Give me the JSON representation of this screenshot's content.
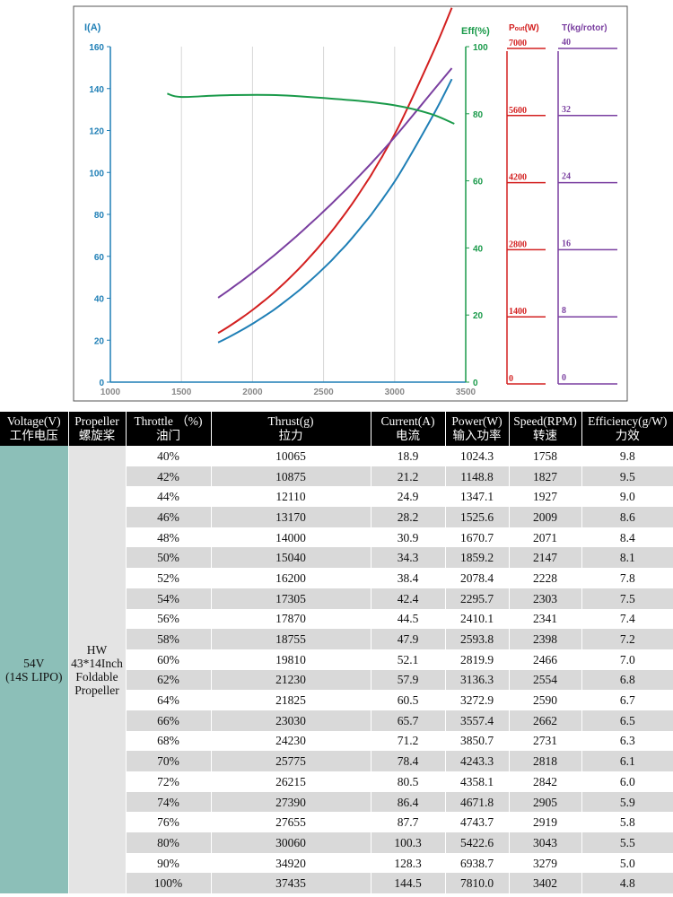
{
  "chart_data": {
    "type": "line",
    "x_ticks": [
      "1000",
      "1500",
      "2000",
      "2500",
      "3000",
      "3500"
    ],
    "xlim": [
      1000,
      3500
    ],
    "axes": {
      "current": {
        "label": "I(A)",
        "ticks": [
          "0",
          "20",
          "40",
          "60",
          "80",
          "100",
          "120",
          "140",
          "160"
        ],
        "range": [
          0,
          160
        ],
        "color": "#1f7fb6"
      },
      "efficiency": {
        "label": "Eff(%)",
        "ticks": [
          "0",
          "20",
          "40",
          "60",
          "80",
          "100"
        ],
        "range": [
          0,
          100
        ],
        "color": "#1a9a4a"
      },
      "power": {
        "label_main": "P",
        "label_sub": "out",
        "label_unit": "(W)",
        "ticks": [
          "0",
          "1400",
          "2800",
          "4200",
          "5600",
          "7000"
        ],
        "range": [
          0,
          7000
        ],
        "color": "#d32020"
      },
      "thrust": {
        "label": "T(kg/rotor)",
        "ticks": [
          "0",
          "8",
          "16",
          "24",
          "32",
          "40"
        ],
        "range": [
          0,
          40
        ],
        "color": "#7a3fa0"
      }
    },
    "series": [
      {
        "axis": "current",
        "color": "#1f7fb6",
        "points": [
          [
            1758,
            18.9
          ],
          [
            1827,
            21.2
          ],
          [
            1927,
            24.9
          ],
          [
            2009,
            28.2
          ],
          [
            2071,
            30.9
          ],
          [
            2147,
            34.3
          ],
          [
            2228,
            38.4
          ],
          [
            2303,
            42.4
          ],
          [
            2341,
            44.5
          ],
          [
            2398,
            47.9
          ],
          [
            2466,
            52.1
          ],
          [
            2554,
            57.9
          ],
          [
            2590,
            60.5
          ],
          [
            2662,
            65.7
          ],
          [
            2731,
            71.2
          ],
          [
            2818,
            78.4
          ],
          [
            2842,
            80.5
          ],
          [
            2905,
            86.4
          ],
          [
            2919,
            87.7
          ],
          [
            3043,
            100.3
          ],
          [
            3279,
            128.3
          ],
          [
            3402,
            144.5
          ]
        ]
      },
      {
        "axis": "power",
        "color": "#d32020",
        "points": [
          [
            1758,
            1024.3
          ],
          [
            1827,
            1148.8
          ],
          [
            1927,
            1347.1
          ],
          [
            2009,
            1525.6
          ],
          [
            2071,
            1670.7
          ],
          [
            2147,
            1859.2
          ],
          [
            2228,
            2078.4
          ],
          [
            2303,
            2295.7
          ],
          [
            2341,
            2410.1
          ],
          [
            2398,
            2593.8
          ],
          [
            2466,
            2819.9
          ],
          [
            2554,
            3136.3
          ],
          [
            2590,
            3272.9
          ],
          [
            2662,
            3557.4
          ],
          [
            2731,
            3850.7
          ],
          [
            2818,
            4243.3
          ],
          [
            2842,
            4358.1
          ],
          [
            2905,
            4671.8
          ],
          [
            2919,
            4743.7
          ],
          [
            3043,
            5422.6
          ],
          [
            3279,
            6938.7
          ],
          [
            3402,
            7810.0
          ]
        ]
      },
      {
        "axis": "thrust",
        "color": "#7a3fa0",
        "points": [
          [
            1758,
            10.065
          ],
          [
            1827,
            10.875
          ],
          [
            1927,
            12.11
          ],
          [
            2009,
            13.17
          ],
          [
            2071,
            14.0
          ],
          [
            2147,
            15.04
          ],
          [
            2228,
            16.2
          ],
          [
            2303,
            17.305
          ],
          [
            2341,
            17.87
          ],
          [
            2398,
            18.755
          ],
          [
            2466,
            19.81
          ],
          [
            2554,
            21.23
          ],
          [
            2590,
            21.825
          ],
          [
            2662,
            23.03
          ],
          [
            2731,
            24.23
          ],
          [
            2818,
            25.775
          ],
          [
            2842,
            26.215
          ],
          [
            2905,
            27.39
          ],
          [
            2919,
            27.655
          ],
          [
            3043,
            30.06
          ],
          [
            3279,
            34.92
          ],
          [
            3402,
            37.435
          ]
        ]
      },
      {
        "axis": "efficiency",
        "color": "#1a9a4a",
        "points": [
          [
            1400,
            86
          ],
          [
            1500,
            85
          ],
          [
            1800,
            85.5
          ],
          [
            2200,
            85.5
          ],
          [
            2700,
            84
          ],
          [
            3000,
            82.5
          ],
          [
            3250,
            80
          ],
          [
            3420,
            77
          ]
        ]
      }
    ]
  },
  "table": {
    "headers": [
      [
        "Voltage(V)",
        "工作电压"
      ],
      [
        "Propeller",
        "螺旋桨"
      ],
      [
        "Throttle （%)",
        "油门"
      ],
      [
        "Thrust(g)",
        "拉力"
      ],
      [
        "Current(A)",
        "电流"
      ],
      [
        "Power(W)",
        "输入功率"
      ],
      [
        "Speed(RPM)",
        "转速"
      ],
      [
        "Efficiency(g/W)",
        "力效"
      ]
    ],
    "voltage": [
      "54V",
      "(14S LIPO)"
    ],
    "propeller": [
      "HW",
      "43*14Inch",
      "Foldable",
      "Propeller"
    ],
    "rows": [
      [
        "40%",
        "10065",
        "18.9",
        "1024.3",
        "1758",
        "9.8"
      ],
      [
        "42%",
        "10875",
        "21.2",
        "1148.8",
        "1827",
        "9.5"
      ],
      [
        "44%",
        "12110",
        "24.9",
        "1347.1",
        "1927",
        "9.0"
      ],
      [
        "46%",
        "13170",
        "28.2",
        "1525.6",
        "2009",
        "8.6"
      ],
      [
        "48%",
        "14000",
        "30.9",
        "1670.7",
        "2071",
        "8.4"
      ],
      [
        "50%",
        "15040",
        "34.3",
        "1859.2",
        "2147",
        "8.1"
      ],
      [
        "52%",
        "16200",
        "38.4",
        "2078.4",
        "2228",
        "7.8"
      ],
      [
        "54%",
        "17305",
        "42.4",
        "2295.7",
        "2303",
        "7.5"
      ],
      [
        "56%",
        "17870",
        "44.5",
        "2410.1",
        "2341",
        "7.4"
      ],
      [
        "58%",
        "18755",
        "47.9",
        "2593.8",
        "2398",
        "7.2"
      ],
      [
        "60%",
        "19810",
        "52.1",
        "2819.9",
        "2466",
        "7.0"
      ],
      [
        "62%",
        "21230",
        "57.9",
        "3136.3",
        "2554",
        "6.8"
      ],
      [
        "64%",
        "21825",
        "60.5",
        "3272.9",
        "2590",
        "6.7"
      ],
      [
        "66%",
        "23030",
        "65.7",
        "3557.4",
        "2662",
        "6.5"
      ],
      [
        "68%",
        "24230",
        "71.2",
        "3850.7",
        "2731",
        "6.3"
      ],
      [
        "70%",
        "25775",
        "78.4",
        "4243.3",
        "2818",
        "6.1"
      ],
      [
        "72%",
        "26215",
        "80.5",
        "4358.1",
        "2842",
        "6.0"
      ],
      [
        "74%",
        "27390",
        "86.4",
        "4671.8",
        "2905",
        "5.9"
      ],
      [
        "76%",
        "27655",
        "87.7",
        "4743.7",
        "2919",
        "5.8"
      ],
      [
        "80%",
        "30060",
        "100.3",
        "5422.6",
        "3043",
        "5.5"
      ],
      [
        "90%",
        "34920",
        "128.3",
        "6938.7",
        "3279",
        "5.0"
      ],
      [
        "100%",
        "37435",
        "144.5",
        "7810.0",
        "3402",
        "4.8"
      ]
    ]
  }
}
